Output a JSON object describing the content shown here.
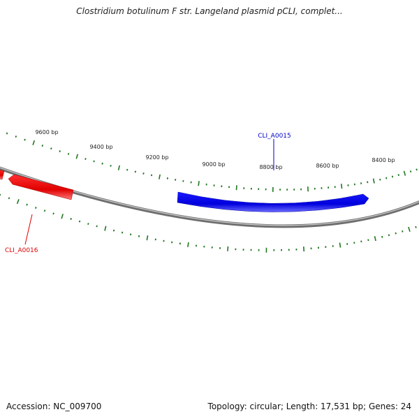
{
  "title": "Clostridium botulinum F str. Langeland plasmid pCLI, complet...",
  "footer": {
    "accession": "Accession: NC_009700",
    "summary": "Topology: circular; Length: 17,531 bp; Genes: 24"
  },
  "colors": {
    "backbone": "#8c8c8c",
    "forward_gene": "#0000e6",
    "reverse_gene": "#e60000",
    "ticks": "#227722",
    "tick_labels": "#222222"
  },
  "scale_labels": [
    "9600 bp",
    "9400 bp",
    "9200 bp",
    "9000 bp",
    "8800 bp",
    "8600 bp",
    "8400 bp"
  ],
  "genes": [
    {
      "label": "CLI_A0015",
      "strand": "forward"
    },
    {
      "label": "CLI_A0016",
      "strand": "reverse"
    }
  ]
}
